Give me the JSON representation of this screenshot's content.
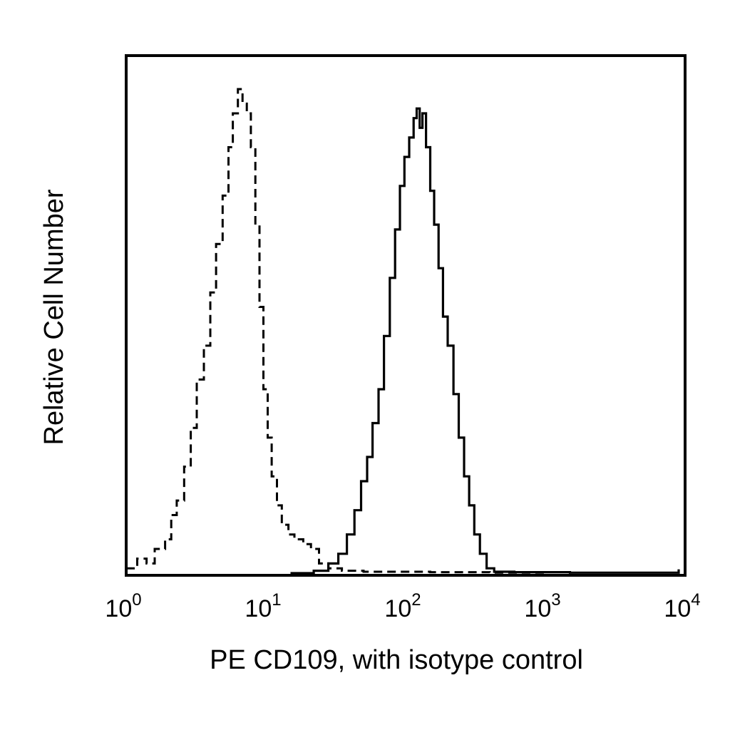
{
  "chart_data": {
    "type": "line",
    "xlabel": "PE CD109, with isotype control",
    "ylabel": "Relative Cell Number",
    "x_scale": "log",
    "xlim": [
      1,
      10000
    ],
    "ylim": [
      0,
      100
    ],
    "grid": false,
    "x_ticks": [
      {
        "base": "10",
        "exp": "0",
        "value": 1
      },
      {
        "base": "10",
        "exp": "1",
        "value": 10
      },
      {
        "base": "10",
        "exp": "2",
        "value": 100
      },
      {
        "base": "10",
        "exp": "3",
        "value": 1000
      },
      {
        "base": "10",
        "exp": "4",
        "value": 10000
      }
    ],
    "series": [
      {
        "style": "dashed",
        "color": "#000000",
        "points": [
          [
            1.0,
            1
          ],
          [
            1.2,
            3
          ],
          [
            1.4,
            2
          ],
          [
            1.6,
            5
          ],
          [
            1.9,
            7
          ],
          [
            2.1,
            12
          ],
          [
            2.3,
            15
          ],
          [
            2.6,
            22
          ],
          [
            2.9,
            30
          ],
          [
            3.2,
            40
          ],
          [
            3.6,
            47
          ],
          [
            4.0,
            58
          ],
          [
            4.4,
            68
          ],
          [
            4.9,
            78
          ],
          [
            5.4,
            88
          ],
          [
            5.8,
            95
          ],
          [
            6.3,
            100
          ],
          [
            6.8,
            97
          ],
          [
            7.3,
            95
          ],
          [
            7.8,
            88
          ],
          [
            8.4,
            72
          ],
          [
            9.0,
            55
          ],
          [
            9.6,
            38
          ],
          [
            10.3,
            28
          ],
          [
            11.0,
            20
          ],
          [
            12.0,
            14
          ],
          [
            13.0,
            10
          ],
          [
            14.5,
            8
          ],
          [
            16.0,
            7
          ],
          [
            18.5,
            6
          ],
          [
            21.0,
            5
          ],
          [
            24.0,
            2
          ],
          [
            28.0,
            1
          ],
          [
            35.0,
            0.5
          ],
          [
            50.0,
            0.3
          ],
          [
            80.0,
            0.3
          ],
          [
            150.0,
            0.2
          ],
          [
            400.0,
            0.1
          ],
          [
            1000.0,
            0
          ]
        ]
      },
      {
        "style": "solid",
        "color": "#000000",
        "points": [
          [
            15.0,
            0
          ],
          [
            22.0,
            0.5
          ],
          [
            28.0,
            2
          ],
          [
            33.0,
            4
          ],
          [
            38.0,
            8
          ],
          [
            43.0,
            13
          ],
          [
            48.0,
            19
          ],
          [
            53.0,
            24
          ],
          [
            58.0,
            31
          ],
          [
            64.0,
            38
          ],
          [
            70.0,
            49
          ],
          [
            77.0,
            61
          ],
          [
            84.0,
            71
          ],
          [
            91.0,
            80
          ],
          [
            98.0,
            86
          ],
          [
            106.0,
            90
          ],
          [
            114.0,
            94
          ],
          [
            120.0,
            96
          ],
          [
            126.0,
            92
          ],
          [
            132.0,
            95
          ],
          [
            140.0,
            88
          ],
          [
            150.0,
            79
          ],
          [
            160.0,
            72
          ],
          [
            172.0,
            63
          ],
          [
            185.0,
            53
          ],
          [
            200.0,
            47
          ],
          [
            220.0,
            37
          ],
          [
            240.0,
            28
          ],
          [
            262.0,
            20
          ],
          [
            285.0,
            14
          ],
          [
            310.0,
            8
          ],
          [
            340.0,
            4
          ],
          [
            380.0,
            1
          ],
          [
            430.0,
            0.3
          ],
          [
            600.0,
            0.2
          ],
          [
            1500.0,
            0.1
          ],
          [
            5000.0,
            0.1
          ],
          [
            9000.0,
            0.8
          ]
        ]
      }
    ]
  }
}
